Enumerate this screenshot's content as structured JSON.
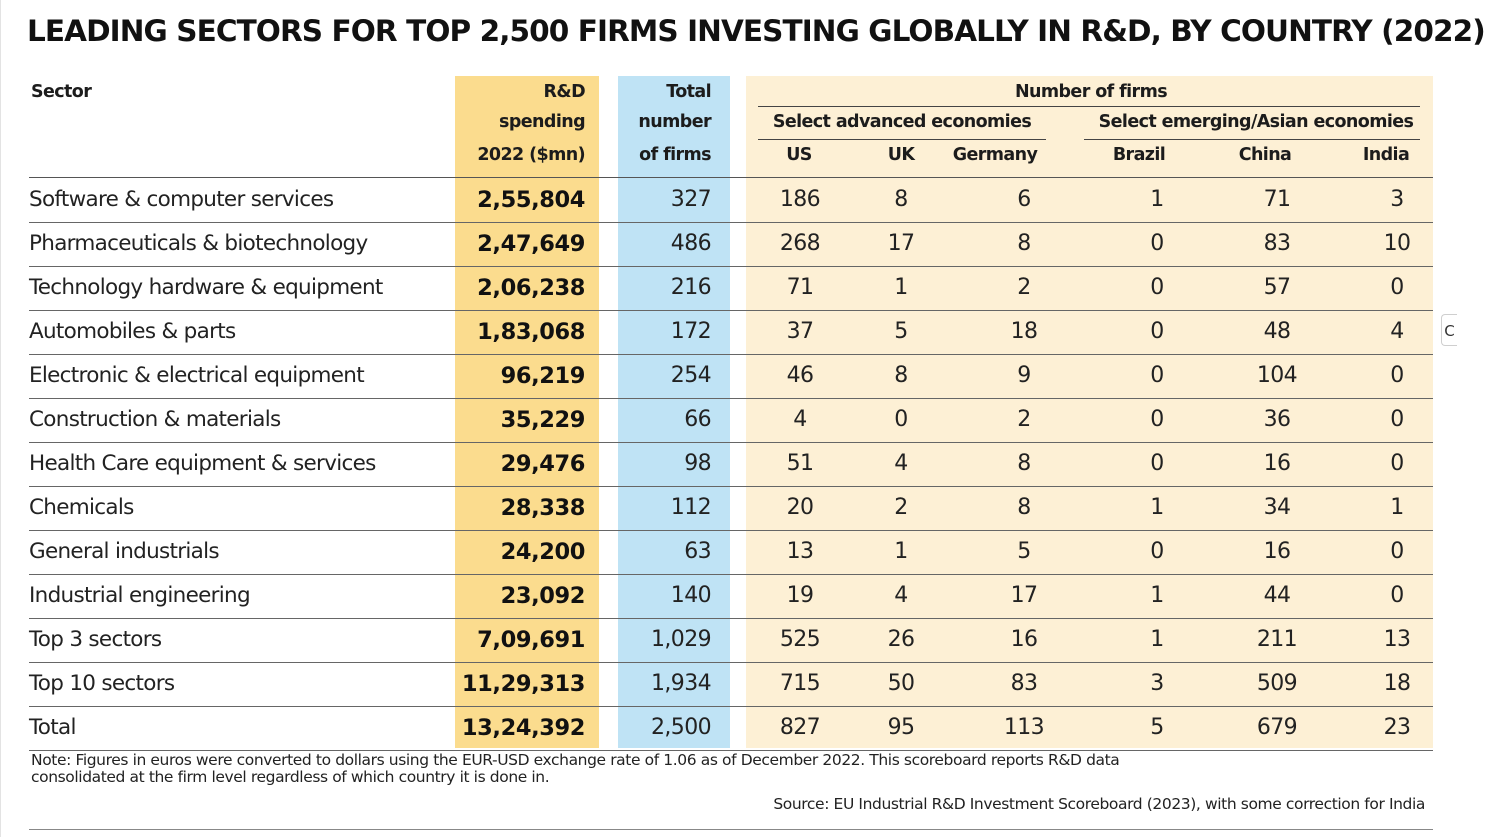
{
  "title": "LEADING SECTORS FOR TOP 2,500 FIRMS INVESTING GLOBALLY IN R&D, BY COUNTRY (2022)",
  "header": {
    "sector": "Sector",
    "spending_l1": "R&D",
    "spending_l2": "spending",
    "spending_l3": "2022 ($mn)",
    "total_l1": "Total",
    "total_l2": "number",
    "total_l3": "of firms",
    "number_of_firms": "Number of firms",
    "advanced": "Select advanced economies",
    "emerging": "Select emerging/Asian economies",
    "countries": [
      "US",
      "UK",
      "Germany",
      "Brazil",
      "China",
      "India"
    ]
  },
  "chart_data": {
    "type": "table",
    "title": "LEADING SECTORS FOR TOP 2,500 FIRMS INVESTING GLOBALLY IN R&D, BY COUNTRY (2022)",
    "columns": [
      "Sector",
      "R&D spending 2022 ($mn)",
      "Total number of firms",
      "US",
      "UK",
      "Germany",
      "Brazil",
      "China",
      "India"
    ],
    "rows": [
      [
        "Software & computer services",
        "2,55,804",
        "327",
        "186",
        "8",
        "6",
        "1",
        "71",
        "3"
      ],
      [
        "Pharmaceuticals & biotechnology",
        "2,47,649",
        "486",
        "268",
        "17",
        "8",
        "0",
        "83",
        "10"
      ],
      [
        "Technology hardware & equipment",
        "2,06,238",
        "216",
        "71",
        "1",
        "2",
        "0",
        "57",
        "0"
      ],
      [
        "Automobiles & parts",
        "1,83,068",
        "172",
        "37",
        "5",
        "18",
        "0",
        "48",
        "4"
      ],
      [
        "Electronic & electrical equipment",
        "96,219",
        "254",
        "46",
        "8",
        "9",
        "0",
        "104",
        "0"
      ],
      [
        "Construction & materials",
        "35,229",
        "66",
        "4",
        "0",
        "2",
        "0",
        "36",
        "0"
      ],
      [
        "Health Care equipment & services",
        "29,476",
        "98",
        "51",
        "4",
        "8",
        "0",
        "16",
        "0"
      ],
      [
        "Chemicals",
        "28,338",
        "112",
        "20",
        "2",
        "8",
        "1",
        "34",
        "1"
      ],
      [
        "General industrials",
        "24,200",
        "63",
        "13",
        "1",
        "5",
        "0",
        "16",
        "0"
      ],
      [
        "Industrial engineering",
        "23,092",
        "140",
        "19",
        "4",
        "17",
        "1",
        "44",
        "0"
      ],
      [
        "Top 3 sectors",
        "7,09,691",
        "1,029",
        "525",
        "26",
        "16",
        "1",
        "211",
        "13"
      ],
      [
        "Top 10 sectors",
        "11,29,313",
        "1,934",
        "715",
        "50",
        "83",
        "3",
        "509",
        "18"
      ],
      [
        "Total",
        "13,24,392",
        "2,500",
        "827",
        "95",
        "113",
        "5",
        "679",
        "23"
      ]
    ]
  },
  "note_l1": "Note: Figures in euros were converted to dollars using the EUR-USD exchange rate of 1.06 as of December 2022.  This scoreboard reports R&D data",
  "note_l2": "consolidated at the firm level regardless of which country it is done in.",
  "source": "Source: EU Industrial R&D Investment Scoreboard (2023), with some correction for India",
  "side_tab": "C",
  "colors": {
    "spending_column": "#fbdc8e",
    "total_column": "#bfe3f5",
    "number_columns": "#fdf0d5"
  }
}
